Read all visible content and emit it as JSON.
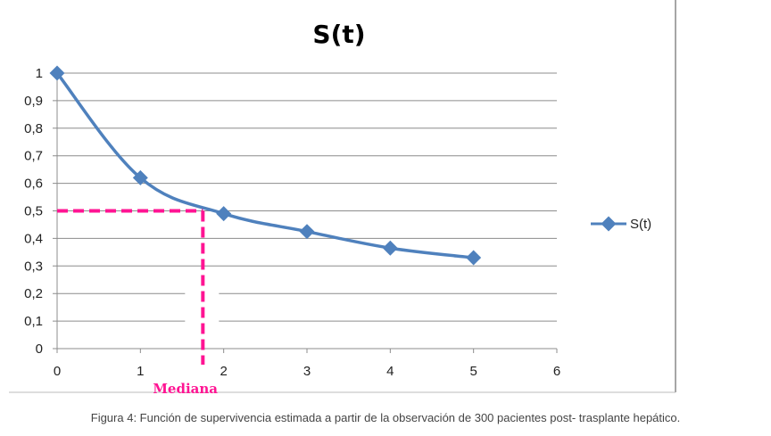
{
  "chart_data": {
    "type": "line",
    "title": "S(t)",
    "xlabel": "",
    "ylabel": "",
    "xlim": [
      0,
      6
    ],
    "ylim": [
      0,
      1
    ],
    "x_ticks": [
      "0",
      "1",
      "2",
      "3",
      "4",
      "5",
      "6"
    ],
    "y_ticks": [
      "0",
      "0,1",
      "0,2",
      "0,3",
      "0,4",
      "0,5",
      "0,6",
      "0,7",
      "0,8",
      "0,9",
      "1"
    ],
    "grid": "horizontal",
    "legend_position": "right",
    "series": [
      {
        "name": "S(t)",
        "color": "#4f81bd",
        "x": [
          0,
          1,
          2,
          3,
          4,
          5
        ],
        "y": [
          1.0,
          0.62,
          0.49,
          0.425,
          0.365,
          0.33
        ]
      }
    ],
    "annotation": {
      "label": "Mediana",
      "x": 1.75,
      "y": 0.5,
      "color": "#ff1493"
    }
  },
  "caption": "Figura 4: Función de supervivencia estimada a partir de la observación de 300 pacientes post- trasplante hepático."
}
